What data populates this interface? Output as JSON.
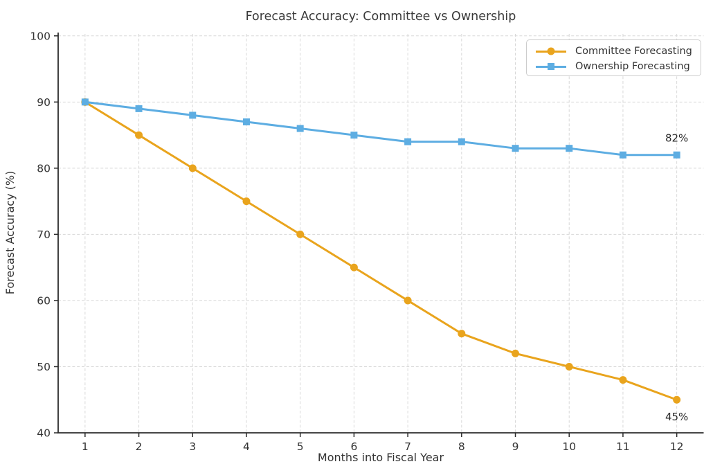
{
  "chart_data": {
    "type": "line",
    "title": "Forecast Accuracy: Committee vs Ownership",
    "xlabel": "Months into Fiscal Year",
    "ylabel": "Forecast Accuracy (%)",
    "x": [
      1,
      2,
      3,
      4,
      5,
      6,
      7,
      8,
      9,
      10,
      11,
      12
    ],
    "xlim": [
      0.5,
      12.5
    ],
    "ylim": [
      40,
      100.5
    ],
    "yticks": [
      40,
      50,
      60,
      70,
      80,
      90,
      100
    ],
    "grid": true,
    "legend_position": "upper right",
    "series": [
      {
        "name": "Committee Forecasting",
        "color": "#E9A41D",
        "marker": "circle",
        "values": [
          90,
          85,
          80,
          75,
          70,
          65,
          60,
          55,
          52,
          50,
          48,
          45
        ]
      },
      {
        "name": "Ownership Forecasting",
        "color": "#5DADE2",
        "marker": "square",
        "values": [
          90,
          89,
          88,
          87,
          86,
          85,
          84,
          84,
          83,
          83,
          82,
          82
        ]
      }
    ],
    "annotations": [
      {
        "text": "82%",
        "x": 12,
        "y": 82,
        "placement": "above"
      },
      {
        "text": "45%",
        "x": 12,
        "y": 45,
        "placement": "below"
      }
    ]
  },
  "colors": {
    "axis": "#2b2b2b",
    "grid": "#d8d8d8",
    "tick_text": "#333333",
    "title_text": "#3a3a3a"
  }
}
